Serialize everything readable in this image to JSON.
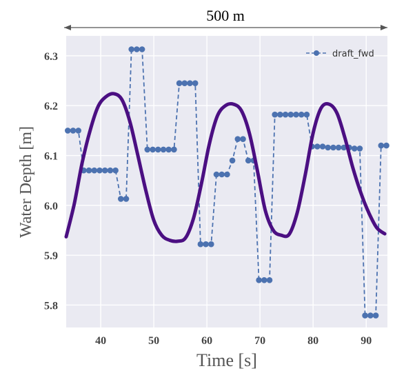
{
  "chart_data": {
    "type": "line",
    "ylabel": "Water Depth [m]",
    "xlabel": "Time [s]",
    "xlim": [
      33.5,
      94.0
    ],
    "ylim": [
      5.755,
      6.34
    ],
    "xticks": [
      40,
      50,
      60,
      70,
      80,
      90
    ],
    "yticks": [
      5.8,
      5.9,
      6.0,
      6.1,
      6.2,
      6.3
    ],
    "ytick_labels": [
      "5.8",
      "5.9",
      "6.0",
      "6.1",
      "6.2",
      "6.3"
    ],
    "grid": true,
    "legend_position": "top-right",
    "plot_background": "#eaeaf2",
    "distance_annotation": "500 m",
    "series": [
      {
        "name": "draft_fwd",
        "style": "dashed-with-markers",
        "color": "#4c72b0",
        "x": [
          33.8,
          34.8,
          35.8,
          36.8,
          37.8,
          38.8,
          39.8,
          40.8,
          41.8,
          42.8,
          43.8,
          44.8,
          45.8,
          46.8,
          47.8,
          48.8,
          49.8,
          50.8,
          51.8,
          52.8,
          53.8,
          54.8,
          55.8,
          56.8,
          57.8,
          58.8,
          59.8,
          60.8,
          61.8,
          62.8,
          63.8,
          64.8,
          65.8,
          66.8,
          67.8,
          68.8,
          69.8,
          70.8,
          71.8,
          72.8,
          73.8,
          74.8,
          75.8,
          76.8,
          77.8,
          78.8,
          79.8,
          80.8,
          81.8,
          82.8,
          83.8,
          84.8,
          85.8,
          86.8,
          87.8,
          88.8,
          89.8,
          90.8,
          91.8,
          92.8,
          93.8
        ],
        "y": [
          6.15,
          6.15,
          6.15,
          6.07,
          6.07,
          6.07,
          6.07,
          6.07,
          6.07,
          6.07,
          6.013,
          6.013,
          6.313,
          6.313,
          6.313,
          6.112,
          6.112,
          6.112,
          6.112,
          6.112,
          6.112,
          6.245,
          6.245,
          6.245,
          6.245,
          5.922,
          5.922,
          5.922,
          6.062,
          6.062,
          6.062,
          6.09,
          6.133,
          6.133,
          6.09,
          6.09,
          5.85,
          5.85,
          5.85,
          6.182,
          6.182,
          6.182,
          6.182,
          6.182,
          6.182,
          6.182,
          6.118,
          6.118,
          6.118,
          6.116,
          6.116,
          6.116,
          6.116,
          6.116,
          6.114,
          6.114,
          5.779,
          5.779,
          5.779,
          6.12,
          6.12
        ]
      },
      {
        "name": "",
        "style": "solid-thick",
        "color": "#4b0f82",
        "x": [
          33.5,
          35.0,
          36.5,
          38.0,
          39.5,
          41.0,
          42.5,
          44.0,
          45.5,
          47.0,
          48.5,
          50.0,
          51.5,
          53.0,
          54.5,
          56.0,
          57.5,
          59.0,
          60.5,
          62.0,
          63.5,
          65.0,
          66.5,
          68.0,
          69.5,
          71.0,
          72.5,
          74.0,
          75.5,
          77.0,
          78.5,
          80.0,
          81.5,
          83.0,
          84.5,
          86.0,
          87.5,
          89.0,
          90.5,
          92.0,
          93.5
        ],
        "y": [
          5.937,
          6.002,
          6.085,
          6.15,
          6.198,
          6.218,
          6.224,
          6.212,
          6.168,
          6.1,
          6.03,
          5.97,
          5.94,
          5.93,
          5.928,
          5.935,
          5.975,
          6.045,
          6.125,
          6.18,
          6.2,
          6.203,
          6.19,
          6.145,
          6.07,
          5.99,
          5.95,
          5.94,
          5.942,
          5.985,
          6.06,
          6.145,
          6.195,
          6.203,
          6.185,
          6.135,
          6.075,
          6.025,
          5.985,
          5.955,
          5.943
        ]
      }
    ]
  }
}
